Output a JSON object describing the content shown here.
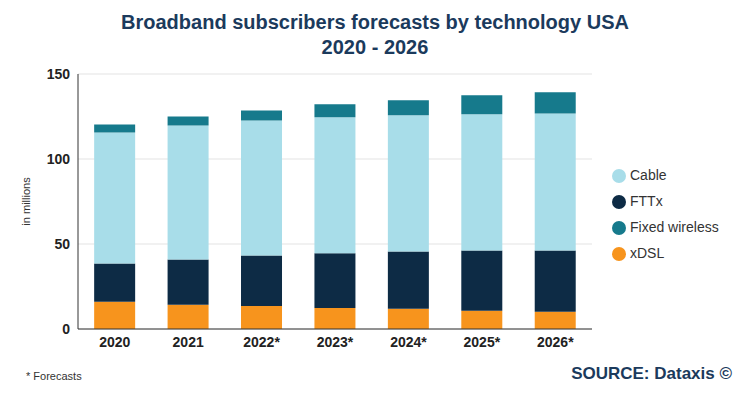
{
  "chart_data": {
    "type": "bar",
    "title": "Broadband subscribers forecasts by technology USA",
    "subtitle": "2020 - 2026",
    "y_label": "in millions",
    "annotations": [
      "* Forecasts",
      "SOURCE: Dataxis ©"
    ],
    "categories": [
      "2020",
      "2021",
      "2022*",
      "2023*",
      "2024*",
      "2025*",
      "2026*"
    ],
    "series": [
      {
        "name": "xDSL",
        "color": "#f7941d",
        "values": [
          16.0,
          14.2,
          13.6,
          12.4,
          11.9,
          10.7,
          10.1
        ]
      },
      {
        "name": "FTTx",
        "color": "#0d2b45",
        "values": [
          22.5,
          26.7,
          29.7,
          32.1,
          33.7,
          35.5,
          36.1
        ]
      },
      {
        "name": "Cable",
        "color": "#a8dde9",
        "values": [
          77.1,
          78.8,
          79.4,
          80.0,
          80.1,
          80.1,
          80.6
        ]
      },
      {
        "name": "Fixed wireless",
        "color": "#167a8c",
        "values": [
          4.7,
          5.3,
          5.9,
          7.7,
          8.9,
          11.2,
          12.5
        ]
      }
    ],
    "ylim": [
      0,
      150
    ],
    "yticks": [
      0,
      50,
      100,
      150
    ],
    "grid": true,
    "stacked": true,
    "legend": "right"
  }
}
